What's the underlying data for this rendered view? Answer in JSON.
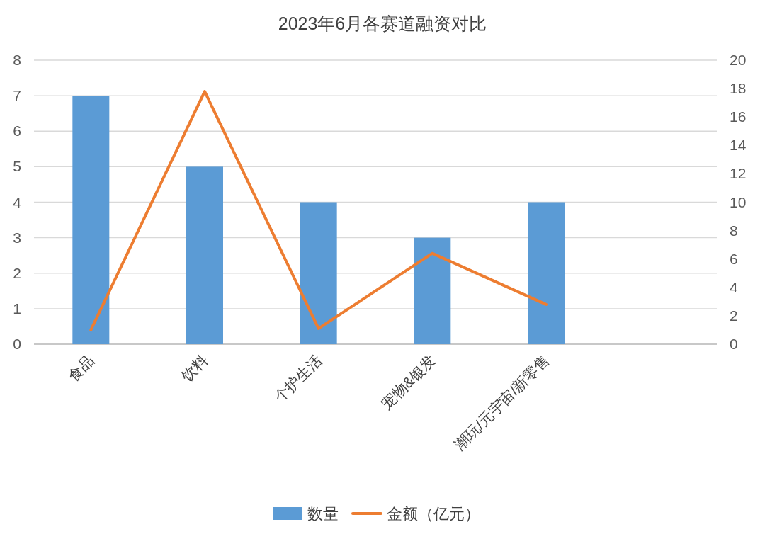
{
  "chart_data": {
    "type": "bar",
    "title": "2023年6月各赛道融资对比",
    "categories": [
      "食品",
      "饮料",
      "个护生活",
      "宠物&银发",
      "潮玩/元宇宙/新零售",
      null
    ],
    "series": [
      {
        "name": "数量",
        "color": "#5b9bd5",
        "values": [
          7,
          5,
          4,
          3,
          4,
          null
        ]
      },
      {
        "name": "金额（亿元）",
        "type": "line",
        "axis": "y2",
        "color": "#ed7d31",
        "values": [
          1.0,
          17.8,
          1.1,
          6.4,
          2.8,
          null
        ]
      }
    ],
    "ylim": [
      0,
      8
    ],
    "yticks": [
      0,
      1,
      2,
      3,
      4,
      5,
      6,
      7,
      8
    ],
    "y2lim": [
      0,
      20
    ],
    "y2ticks": [
      0,
      2,
      4,
      6,
      8,
      10,
      12,
      14,
      16,
      18,
      20
    ],
    "grid": "y",
    "legend": "bottom",
    "marker": "none",
    "line_style": "solid"
  }
}
